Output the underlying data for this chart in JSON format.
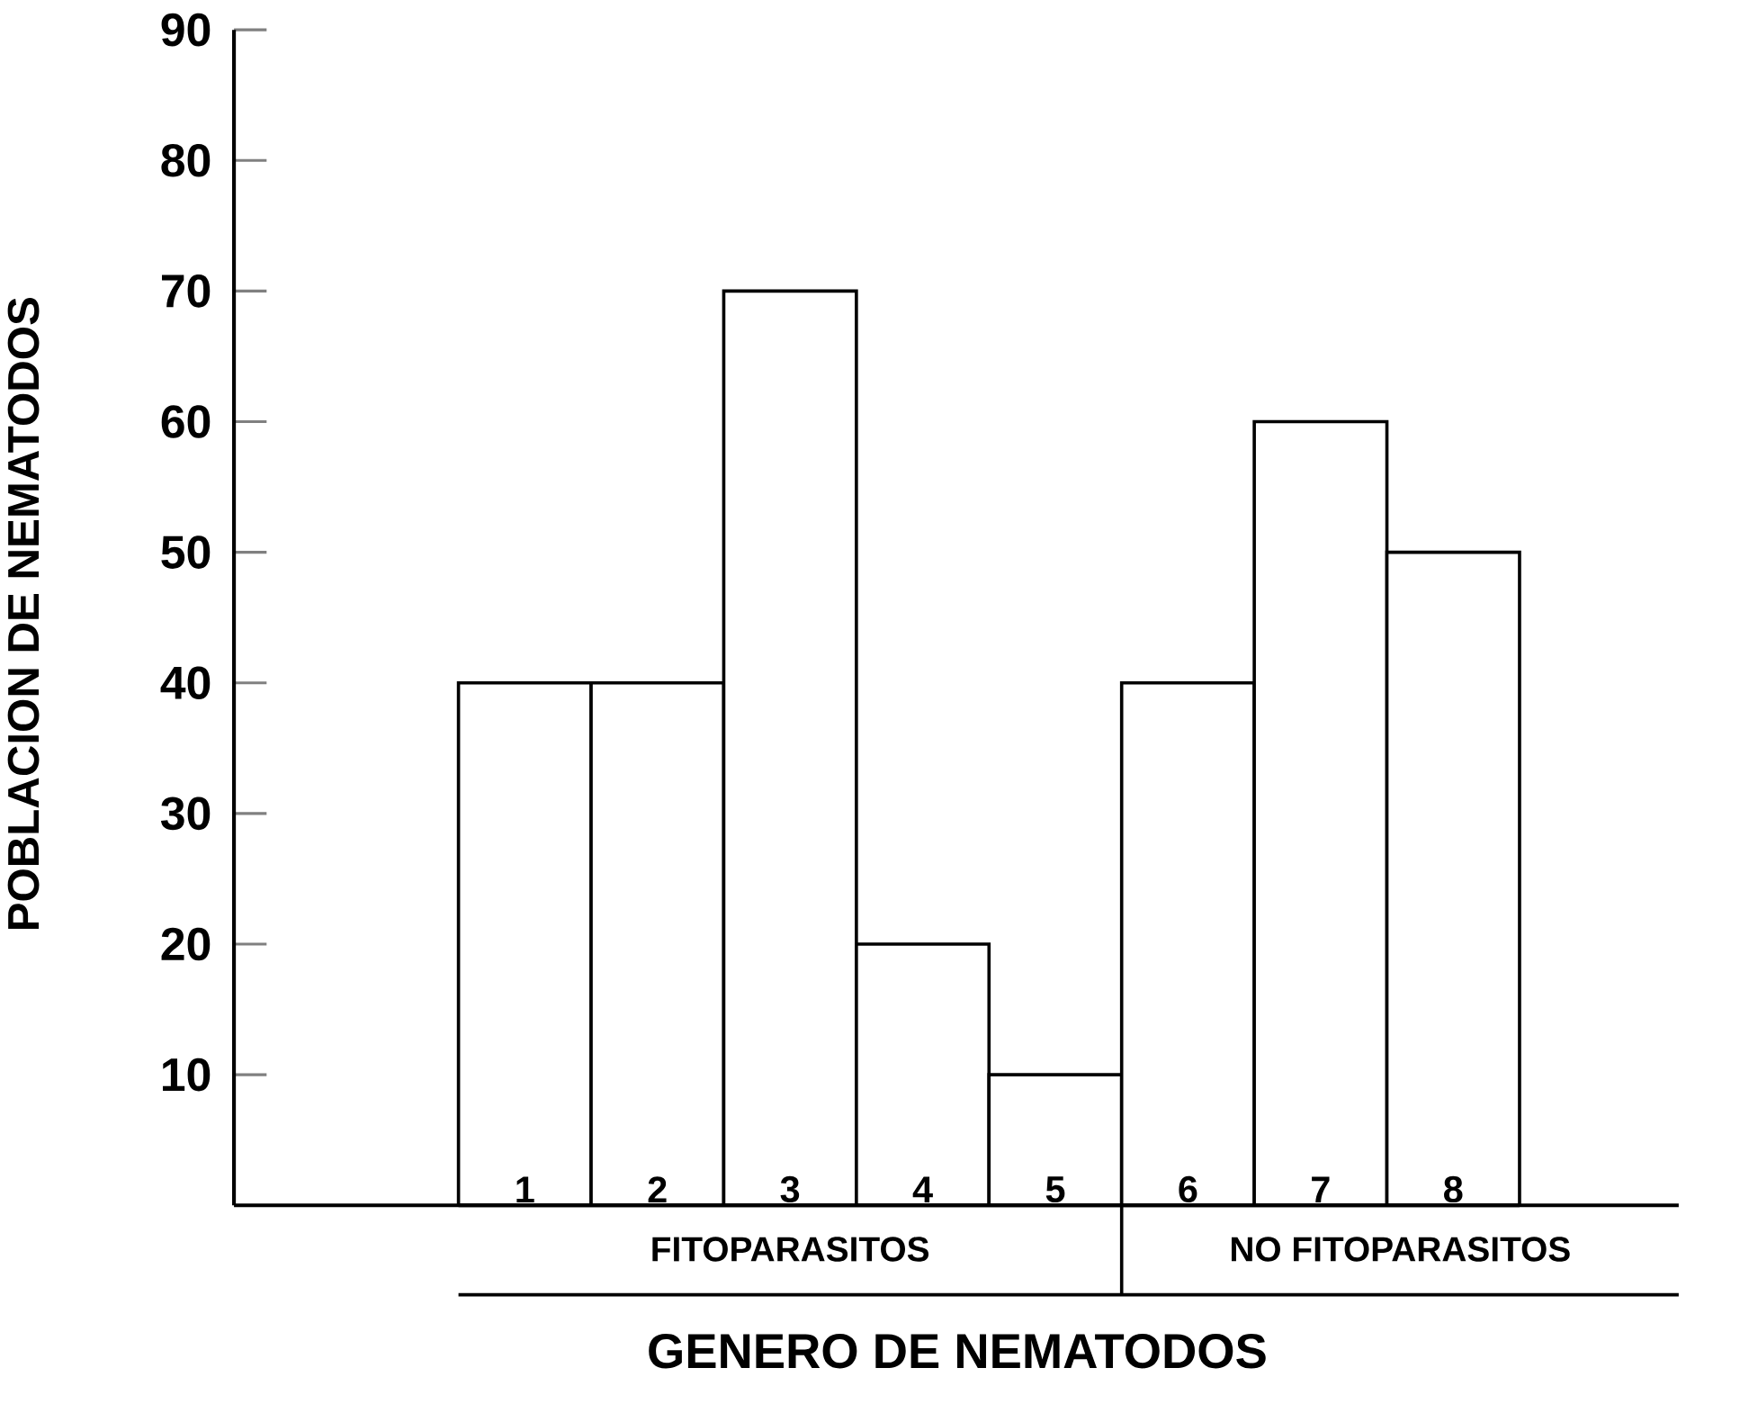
{
  "chart_data": {
    "type": "bar",
    "xlabel": "GENERO DE NEMATODOS",
    "ylabel": "POBLACION DE NEMATODOS",
    "categories": [
      "1",
      "2",
      "3",
      "4",
      "5",
      "6",
      "7",
      "8"
    ],
    "values": [
      40,
      40,
      70,
      20,
      10,
      40,
      60,
      50
    ],
    "color": "#ffffff",
    "ylim": [
      0,
      90
    ],
    "yticks": [
      10,
      20,
      30,
      40,
      50,
      60,
      70,
      80,
      90
    ],
    "annotations": [
      "FITOPARASITOS",
      "NO FITOPARASITOS"
    ],
    "grid": false
  }
}
